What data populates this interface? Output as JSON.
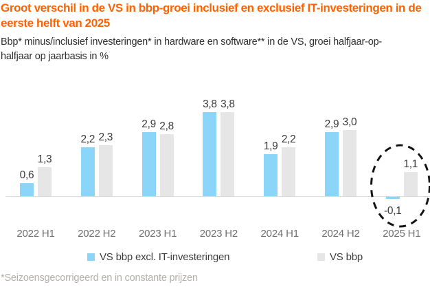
{
  "header": {
    "title_line1": "Groot verschil in de VS in bbp-groei inclusief en exclusief IT-investeringen in de",
    "title_line2": "eerste helft van 2025",
    "subtitle_line1": "Bbp* minus/inclusief investeringen* in hardware en software** in de VS, groei halfjaar-op-",
    "subtitle_line2": "halfjaar op jaarbasis in %"
  },
  "chart_data": {
    "type": "bar",
    "title": "Groot verschil in de VS in bbp-groei inclusief en exclusief IT-investeringen in de eerste helft van 2025",
    "subtitle": "Bbp* minus/inclusief investeringen* in hardware en software** in de VS, groei halfjaar-op-halfjaar op jaarbasis in %",
    "categories": [
      "2022 H1",
      "2022 H2",
      "2023 H1",
      "2023 H2",
      "2024 H1",
      "2024 H2",
      "2025 H1"
    ],
    "series": [
      {
        "name": "VS bbp excl. IT-investeringen",
        "color": "#8BD6F8",
        "values": [
          0.6,
          2.2,
          2.9,
          3.8,
          1.9,
          2.9,
          -0.1
        ],
        "labels": [
          "0,6",
          "2,2",
          "2,9",
          "3,8",
          "1,9",
          "2,9",
          "-0,1"
        ]
      },
      {
        "name": "VS bbp",
        "color": "#E6E6E6",
        "values": [
          1.3,
          2.3,
          2.8,
          3.8,
          2.2,
          3.0,
          1.1
        ],
        "labels": [
          "1,3",
          "2,3",
          "2,8",
          "3,8",
          "2,2",
          "3,0",
          "1,1"
        ]
      }
    ],
    "ylim": [
      -0.5,
      4.2
    ],
    "grid": false,
    "legend_position": "bottom",
    "annotation": {
      "type": "dashed-ellipse",
      "target": "2025 H1"
    }
  },
  "footnote": "*Seizoensgecorrigeerd en in constante prijzen",
  "colors": {
    "title": "#FF6200",
    "bar_blue": "#8BD6F8",
    "bar_grey": "#E6E6E6",
    "axis_line": "#DBDBDB",
    "annotation": "#141414",
    "value_label": "#3A3A3A",
    "axis_label": "#6E6E6E",
    "footnote": "#B3AEA9"
  }
}
